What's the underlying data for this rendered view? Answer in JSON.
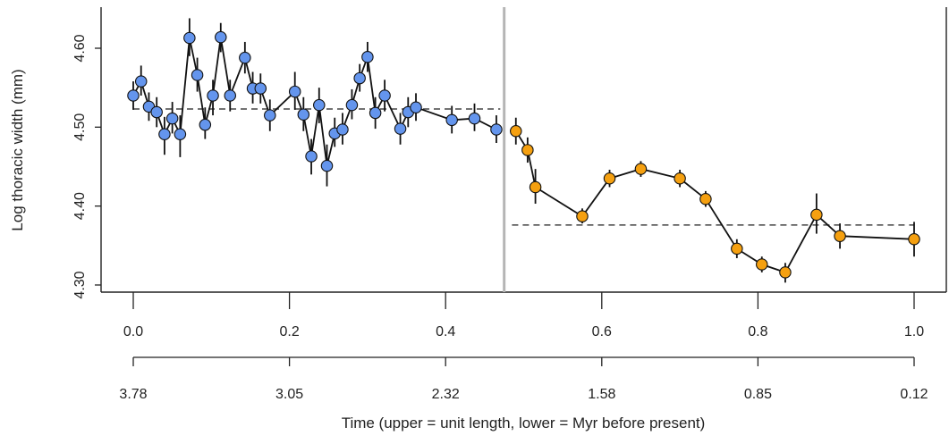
{
  "chart_data": {
    "type": "scatter",
    "ylabel": "Log thoracic width (mm)",
    "xlabel": "Time (upper = unit length, lower = Myr before present)",
    "ylim": [
      4.295,
      4.655
    ],
    "xlim": [
      -0.03,
      1.045
    ],
    "y_ticks": [
      "4.30",
      "4.40",
      "4.50",
      "4.60"
    ],
    "x_ticks_upper": [
      "0.0",
      "0.2",
      "0.4",
      "0.6",
      "0.8",
      "1.0"
    ],
    "x_ticks_lower": [
      "3.78",
      "3.05",
      "2.32",
      "1.58",
      "0.85",
      "0.12"
    ],
    "break_x": 0.475,
    "colors": {
      "before": "#6495ED",
      "after": "#F5A010",
      "line": "#111111",
      "break": "#b5b5b5"
    },
    "series": [
      {
        "points": [
          {
            "x": 0.0,
            "y": 4.54,
            "lo": 4.522,
            "hi": 4.558
          },
          {
            "x": 0.01,
            "y": 4.558,
            "lo": 4.54,
            "hi": 4.578
          },
          {
            "x": 0.02,
            "y": 4.526,
            "lo": 4.508,
            "hi": 4.544
          },
          {
            "x": 0.03,
            "y": 4.519,
            "lo": 4.5,
            "hi": 4.538
          },
          {
            "x": 0.04,
            "y": 4.491,
            "lo": 4.465,
            "hi": 4.513
          },
          {
            "x": 0.05,
            "y": 4.511,
            "lo": 4.492,
            "hi": 4.532
          },
          {
            "x": 0.06,
            "y": 4.491,
            "lo": 4.462,
            "hi": 4.515
          },
          {
            "x": 0.072,
            "y": 4.613,
            "lo": 4.59,
            "hi": 4.638
          },
          {
            "x": 0.082,
            "y": 4.566,
            "lo": 4.545,
            "hi": 4.588
          },
          {
            "x": 0.092,
            "y": 4.503,
            "lo": 4.485,
            "hi": 4.525
          },
          {
            "x": 0.102,
            "y": 4.54,
            "lo": 4.515,
            "hi": 4.56
          },
          {
            "x": 0.112,
            "y": 4.614,
            "lo": 4.595,
            "hi": 4.632
          },
          {
            "x": 0.124,
            "y": 4.54,
            "lo": 4.52,
            "hi": 4.56
          },
          {
            "x": 0.143,
            "y": 4.588,
            "lo": 4.568,
            "hi": 4.608
          },
          {
            "x": 0.153,
            "y": 4.549,
            "lo": 4.53,
            "hi": 4.57
          },
          {
            "x": 0.163,
            "y": 4.549,
            "lo": 4.53,
            "hi": 4.568
          },
          {
            "x": 0.175,
            "y": 4.515,
            "lo": 4.495,
            "hi": 4.535
          },
          {
            "x": 0.207,
            "y": 4.545,
            "lo": 4.522,
            "hi": 4.57
          },
          {
            "x": 0.218,
            "y": 4.516,
            "lo": 4.495,
            "hi": 4.538
          },
          {
            "x": 0.228,
            "y": 4.463,
            "lo": 4.44,
            "hi": 4.485
          },
          {
            "x": 0.238,
            "y": 4.528,
            "lo": 4.505,
            "hi": 4.55
          },
          {
            "x": 0.248,
            "y": 4.451,
            "lo": 4.425,
            "hi": 4.478
          },
          {
            "x": 0.258,
            "y": 4.492,
            "lo": 4.475,
            "hi": 4.512
          },
          {
            "x": 0.268,
            "y": 4.497,
            "lo": 4.478,
            "hi": 4.518
          },
          {
            "x": 0.28,
            "y": 4.528,
            "lo": 4.51,
            "hi": 4.548
          },
          {
            "x": 0.29,
            "y": 4.562,
            "lo": 4.545,
            "hi": 4.58
          },
          {
            "x": 0.3,
            "y": 4.589,
            "lo": 4.57,
            "hi": 4.608
          },
          {
            "x": 0.31,
            "y": 4.518,
            "lo": 4.498,
            "hi": 4.538
          },
          {
            "x": 0.322,
            "y": 4.54,
            "lo": 4.52,
            "hi": 4.56
          },
          {
            "x": 0.342,
            "y": 4.498,
            "lo": 4.478,
            "hi": 4.518
          },
          {
            "x": 0.352,
            "y": 4.519,
            "lo": 4.5,
            "hi": 4.538
          },
          {
            "x": 0.362,
            "y": 4.525,
            "lo": 4.508,
            "hi": 4.543
          },
          {
            "x": 0.408,
            "y": 4.509,
            "lo": 4.492,
            "hi": 4.527
          },
          {
            "x": 0.437,
            "y": 4.511,
            "lo": 4.495,
            "hi": 4.53
          },
          {
            "x": 0.465,
            "y": 4.497,
            "lo": 4.48,
            "hi": 4.515
          }
        ]
      },
      {
        "points": [
          {
            "x": 0.49,
            "y": 4.495,
            "lo": 4.478,
            "hi": 4.512
          },
          {
            "x": 0.505,
            "y": 4.471,
            "lo": 4.455,
            "hi": 4.487
          },
          {
            "x": 0.515,
            "y": 4.424,
            "lo": 4.403,
            "hi": 4.447
          },
          {
            "x": 0.575,
            "y": 4.387,
            "lo": 4.378,
            "hi": 4.397
          },
          {
            "x": 0.61,
            "y": 4.435,
            "lo": 4.424,
            "hi": 4.446
          },
          {
            "x": 0.65,
            "y": 4.447,
            "lo": 4.437,
            "hi": 4.457
          },
          {
            "x": 0.7,
            "y": 4.435,
            "lo": 4.424,
            "hi": 4.446
          },
          {
            "x": 0.733,
            "y": 4.409,
            "lo": 4.399,
            "hi": 4.419
          },
          {
            "x": 0.773,
            "y": 4.346,
            "lo": 4.334,
            "hi": 4.358
          },
          {
            "x": 0.805,
            "y": 4.326,
            "lo": 4.316,
            "hi": 4.336
          },
          {
            "x": 0.835,
            "y": 4.316,
            "lo": 4.303,
            "hi": 4.328
          },
          {
            "x": 0.875,
            "y": 4.389,
            "lo": 4.365,
            "hi": 4.416
          },
          {
            "x": 0.905,
            "y": 4.362,
            "lo": 4.346,
            "hi": 4.378
          },
          {
            "x": 1.0,
            "y": 4.358,
            "lo": 4.336,
            "hi": 4.38
          }
        ]
      }
    ],
    "mean_lines": [
      {
        "x0": 0.0,
        "x1": 0.47,
        "y": 4.523
      },
      {
        "x0": 0.485,
        "x1": 1.0,
        "y": 4.376
      }
    ]
  }
}
